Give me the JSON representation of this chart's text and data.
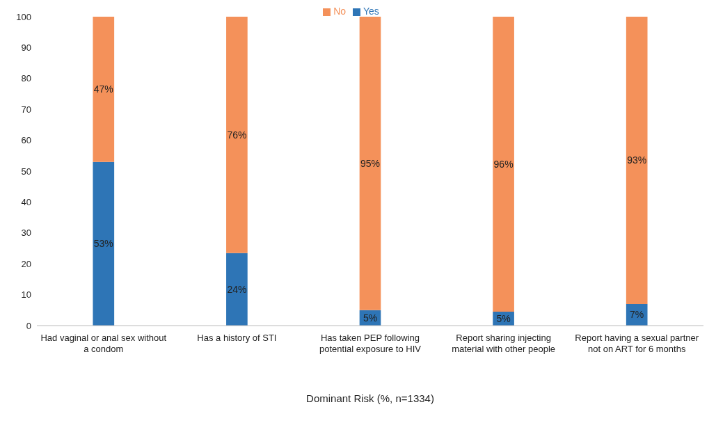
{
  "chart_data": {
    "type": "bar",
    "stacked": true,
    "categories": [
      "Had vaginal or anal sex without a condom",
      "Has a history of STI",
      "Has taken PEP following potential exposure to HIV",
      "Report sharing injecting material with other people",
      "Report having a sexual partner not on ART for 6 months"
    ],
    "series": [
      {
        "name": "Yes",
        "color": "#2e75b6",
        "values": [
          53,
          23.5,
          5,
          4.5,
          7
        ],
        "value_labels": [
          "53%",
          "24%",
          "5%",
          "5%",
          "7%"
        ]
      },
      {
        "name": "No",
        "color": "#f4915a",
        "values": [
          47,
          76.5,
          95,
          95.5,
          93
        ],
        "value_labels": [
          "47%",
          "76%",
          "95%",
          "96%",
          "93%"
        ]
      }
    ],
    "xlabel": "Dominant Risk (%, n=1334)",
    "ylim": [
      0,
      100
    ],
    "yticks": [
      0,
      10,
      20,
      30,
      40,
      50,
      60,
      70,
      80,
      90,
      100
    ],
    "legend": "top",
    "grid": false
  }
}
